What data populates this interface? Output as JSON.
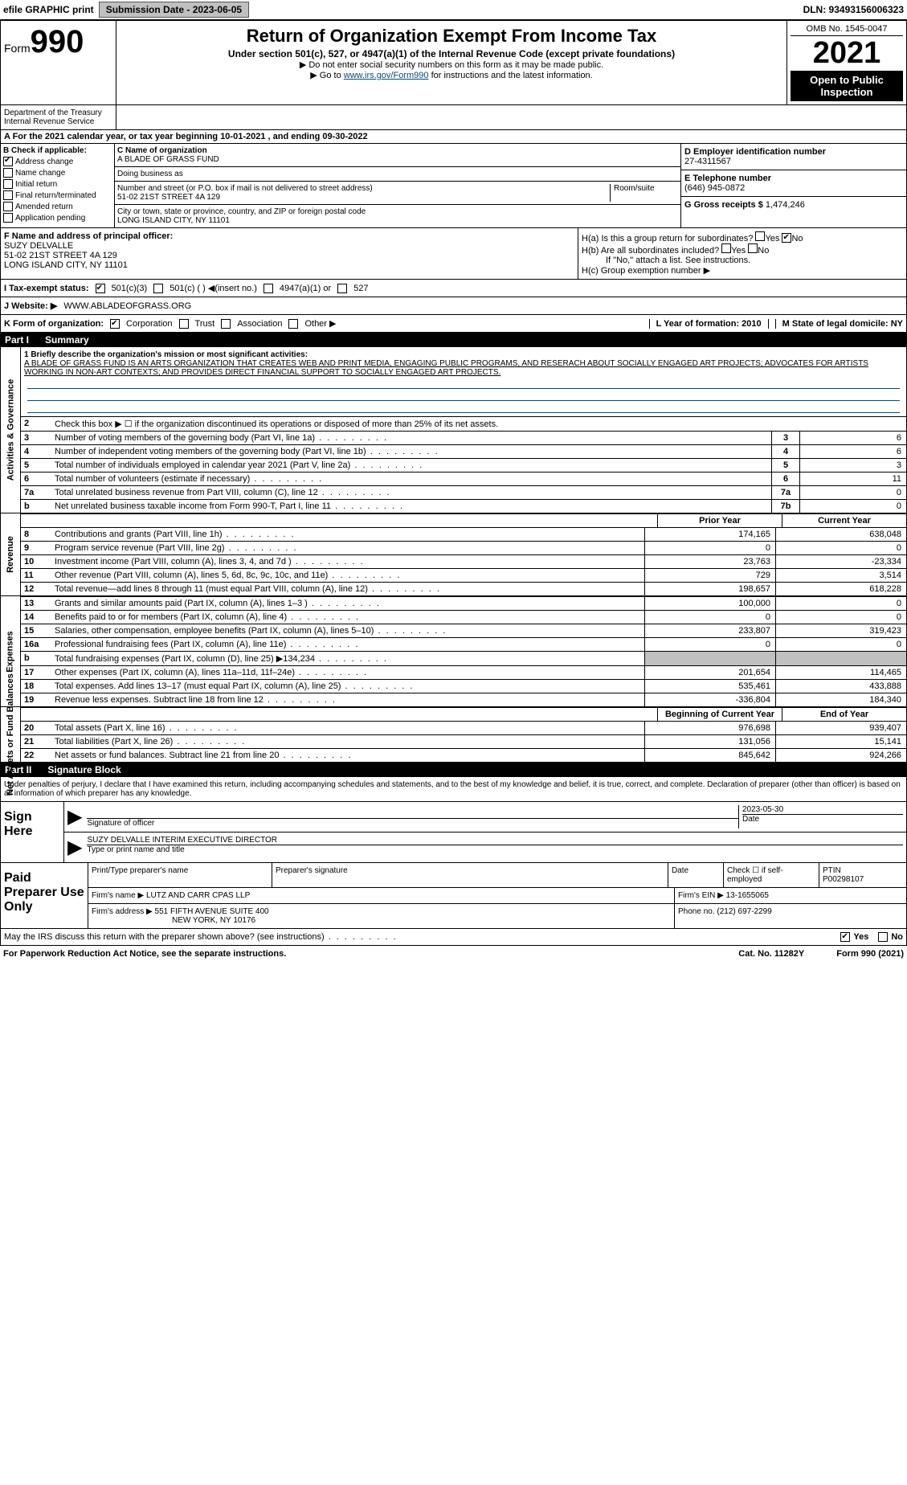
{
  "topbar": {
    "efile_label": "efile GRAPHIC print",
    "submission_label": "Submission Date - 2023-06-05",
    "dln": "DLN: 93493156006323"
  },
  "header": {
    "form_prefix": "Form",
    "form_number": "990",
    "title": "Return of Organization Exempt From Income Tax",
    "subtitle": "Under section 501(c), 527, or 4947(a)(1) of the Internal Revenue Code (except private foundations)",
    "note1": "▶ Do not enter social security numbers on this form as it may be made public.",
    "note2_prefix": "▶ Go to ",
    "note2_link": "www.irs.gov/Form990",
    "note2_suffix": " for instructions and the latest information.",
    "omb": "OMB No. 1545-0047",
    "year": "2021",
    "open_public": "Open to Public Inspection",
    "dept": "Department of the Treasury",
    "irs": "Internal Revenue Service"
  },
  "period": {
    "text": "A For the 2021 calendar year, or tax year beginning 10-01-2021    , and ending 09-30-2022"
  },
  "section_b": {
    "header": "B Check if applicable:",
    "address_change": "Address change",
    "name_change": "Name change",
    "initial_return": "Initial return",
    "final_return": "Final return/terminated",
    "amended_return": "Amended return",
    "application_pending": "Application pending"
  },
  "section_c": {
    "label": "C Name of organization",
    "name": "A BLADE OF GRASS FUND",
    "dba_label": "Doing business as",
    "dba": "",
    "street_label": "Number and street (or P.O. box if mail is not delivered to street address)",
    "room_label": "Room/suite",
    "street": "51-02 21ST STREET 4A 129",
    "city_label": "City or town, state or province, country, and ZIP or foreign postal code",
    "city": "LONG ISLAND CITY, NY  11101"
  },
  "section_d": {
    "label": "D Employer identification number",
    "ein": "27-4311567"
  },
  "section_e": {
    "label": "E Telephone number",
    "phone": "(646) 945-0872"
  },
  "section_g": {
    "label": "G Gross receipts $",
    "value": "1,474,246"
  },
  "section_f": {
    "label": "F Name and address of principal officer:",
    "name": "SUZY DELVALLE",
    "addr1": "51-02 21ST STREET 4A 129",
    "addr2": "LONG ISLAND CITY, NY  11101"
  },
  "section_h": {
    "ha": "H(a)  Is this a group return for subordinates?",
    "hb": "H(b)  Are all subordinates included?",
    "hb_note": "If \"No,\" attach a list. See instructions.",
    "hc": "H(c)  Group exemption number ▶"
  },
  "section_i": {
    "label": "I  Tax-exempt status:",
    "opt1": "501(c)(3)",
    "opt2": "501(c) (  ) ◀(insert no.)",
    "opt3": "4947(a)(1) or",
    "opt4": "527"
  },
  "section_j": {
    "label": "J  Website: ▶",
    "value": "WWW.ABLADEOFGRASS.ORG"
  },
  "section_k": {
    "label": "K Form of organization:",
    "corp": "Corporation",
    "trust": "Trust",
    "assoc": "Association",
    "other": "Other ▶"
  },
  "section_l": {
    "label": "L Year of formation: 2010"
  },
  "section_m": {
    "label": "M State of legal domicile: NY"
  },
  "part1": {
    "header_label": "Part I",
    "header_title": "Summary",
    "mission_label": "1  Briefly describe the organization's mission or most significant activities:",
    "mission_text": "A BLADE OF GRASS FUND IS AN ARTS ORGANIZATION THAT CREATES WEB AND PRINT MEDIA, ENGAGING PUBLIC PROGRAMS, AND RESERACH ABOUT SOCIALLY ENGAGED ART PROJECTS; ADVOCATES FOR ARTISTS WORKING IN NON-ART CONTEXTS; AND PROVIDES DIRECT FINANCIAL SUPPORT TO SOCIALLY ENGAGED ART PROJECTS.",
    "line2": "Check this box ▶ ☐  if the organization discontinued its operations or disposed of more than 25% of its net assets.",
    "sides": {
      "gov": "Activities & Governance",
      "rev": "Revenue",
      "exp": "Expenses",
      "net": "Net Assets or Fund Balances"
    },
    "gov_lines": [
      {
        "n": "3",
        "d": "Number of voting members of the governing body (Part VI, line 1a)",
        "box": "3",
        "v": "6"
      },
      {
        "n": "4",
        "d": "Number of independent voting members of the governing body (Part VI, line 1b)",
        "box": "4",
        "v": "6"
      },
      {
        "n": "5",
        "d": "Total number of individuals employed in calendar year 2021 (Part V, line 2a)",
        "box": "5",
        "v": "3"
      },
      {
        "n": "6",
        "d": "Total number of volunteers (estimate if necessary)",
        "box": "6",
        "v": "11"
      },
      {
        "n": "7a",
        "d": "Total unrelated business revenue from Part VIII, column (C), line 12",
        "box": "7a",
        "v": "0"
      },
      {
        "n": "b",
        "d": "Net unrelated business taxable income from Form 990-T, Part I, line 11",
        "box": "7b",
        "v": "0"
      }
    ],
    "col_headers": {
      "prior": "Prior Year",
      "current": "Current Year"
    },
    "rev_lines": [
      {
        "n": "8",
        "d": "Contributions and grants (Part VIII, line 1h)",
        "v1": "174,165",
        "v2": "638,048"
      },
      {
        "n": "9",
        "d": "Program service revenue (Part VIII, line 2g)",
        "v1": "0",
        "v2": "0"
      },
      {
        "n": "10",
        "d": "Investment income (Part VIII, column (A), lines 3, 4, and 7d )",
        "v1": "23,763",
        "v2": "-23,334"
      },
      {
        "n": "11",
        "d": "Other revenue (Part VIII, column (A), lines 5, 6d, 8c, 9c, 10c, and 11e)",
        "v1": "729",
        "v2": "3,514"
      },
      {
        "n": "12",
        "d": "Total revenue—add lines 8 through 11 (must equal Part VIII, column (A), line 12)",
        "v1": "198,657",
        "v2": "618,228"
      }
    ],
    "exp_lines": [
      {
        "n": "13",
        "d": "Grants and similar amounts paid (Part IX, column (A), lines 1–3 )",
        "v1": "100,000",
        "v2": "0"
      },
      {
        "n": "14",
        "d": "Benefits paid to or for members (Part IX, column (A), line 4)",
        "v1": "0",
        "v2": "0"
      },
      {
        "n": "15",
        "d": "Salaries, other compensation, employee benefits (Part IX, column (A), lines 5–10)",
        "v1": "233,807",
        "v2": "319,423"
      },
      {
        "n": "16a",
        "d": "Professional fundraising fees (Part IX, column (A), line 11e)",
        "v1": "0",
        "v2": "0"
      },
      {
        "n": "b",
        "d": "Total fundraising expenses (Part IX, column (D), line 25) ▶134,234",
        "v1": "",
        "v2": "",
        "grey": true
      },
      {
        "n": "17",
        "d": "Other expenses (Part IX, column (A), lines 11a–11d, 11f–24e)",
        "v1": "201,654",
        "v2": "114,465"
      },
      {
        "n": "18",
        "d": "Total expenses. Add lines 13–17 (must equal Part IX, column (A), line 25)",
        "v1": "535,461",
        "v2": "433,888"
      },
      {
        "n": "19",
        "d": "Revenue less expenses. Subtract line 18 from line 12",
        "v1": "-336,804",
        "v2": "184,340"
      }
    ],
    "net_headers": {
      "begin": "Beginning of Current Year",
      "end": "End of Year"
    },
    "net_lines": [
      {
        "n": "20",
        "d": "Total assets (Part X, line 16)",
        "v1": "976,698",
        "v2": "939,407"
      },
      {
        "n": "21",
        "d": "Total liabilities (Part X, line 26)",
        "v1": "131,056",
        "v2": "15,141"
      },
      {
        "n": "22",
        "d": "Net assets or fund balances. Subtract line 21 from line 20",
        "v1": "845,642",
        "v2": "924,266"
      }
    ]
  },
  "part2": {
    "header_label": "Part II",
    "header_title": "Signature Block",
    "declaration": "Under penalties of perjury, I declare that I have examined this return, including accompanying schedules and statements, and to the best of my knowledge and belief, it is true, correct, and complete. Declaration of preparer (other than officer) is based on all information of which preparer has any knowledge.",
    "sign_here": "Sign Here",
    "sig_officer": "Signature of officer",
    "sig_date": "2023-05-30",
    "date_label": "Date",
    "officer_name": "SUZY DELVALLE  INTERIM EXECUTIVE DIRECTOR",
    "name_label": "Type or print name and title",
    "paid_label": "Paid Preparer Use Only",
    "prep_name_label": "Print/Type preparer's name",
    "prep_sig_label": "Preparer's signature",
    "prep_date_label": "Date",
    "self_emp": "Check ☐ if self-employed",
    "ptin_label": "PTIN",
    "ptin": "P00298107",
    "firm_name_label": "Firm's name    ▶",
    "firm_name": "LUTZ AND CARR CPAS LLP",
    "firm_ein_label": "Firm's EIN ▶",
    "firm_ein": "13-1655065",
    "firm_addr_label": "Firm's address ▶",
    "firm_addr1": "551 FIFTH AVENUE SUITE 400",
    "firm_addr2": "NEW YORK, NY  10176",
    "phone_label": "Phone no.",
    "phone": "(212) 697-2299",
    "discuss": "May the IRS discuss this return with the preparer shown above? (see instructions)",
    "yes": "Yes",
    "no": "No"
  },
  "footer": {
    "paperwork": "For Paperwork Reduction Act Notice, see the separate instructions.",
    "cat": "Cat. No. 11282Y",
    "form": "Form 990 (2021)"
  },
  "colors": {
    "link": "#004b7a",
    "grey": "#c0c0c0",
    "black": "#000000"
  }
}
